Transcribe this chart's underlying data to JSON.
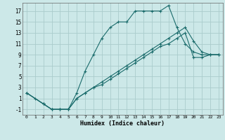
{
  "xlabel": "Humidex (Indice chaleur)",
  "background_color": "#cce8e8",
  "grid_color": "#aacccc",
  "line_color": "#1a6b6b",
  "xlim": [
    -0.5,
    23.5
  ],
  "ylim": [
    -2,
    18.5
  ],
  "xtick_labels": [
    "0",
    "1",
    "2",
    "3",
    "4",
    "5",
    "6",
    "7",
    "8",
    "9",
    "10",
    "11",
    "12",
    "13",
    "14",
    "15",
    "16",
    "17",
    "18",
    "19",
    "20",
    "21",
    "22",
    "23"
  ],
  "ytick_values": [
    -1,
    1,
    3,
    5,
    7,
    9,
    11,
    13,
    15,
    17
  ],
  "line1_x": [
    0,
    1,
    2,
    3,
    4,
    5,
    6,
    7,
    8,
    9,
    10,
    11,
    12,
    13,
    14,
    15,
    16,
    17,
    18,
    19,
    20,
    21,
    22,
    23
  ],
  "line1_y": [
    2,
    1,
    0,
    -1,
    -1,
    -1,
    2,
    6,
    9,
    12,
    14,
    15,
    15,
    17,
    17,
    17,
    17,
    18,
    14,
    11,
    9.5,
    9,
    9,
    9
  ],
  "line2_x": [
    0,
    2,
    3,
    4,
    5,
    6,
    7,
    8,
    9,
    10,
    11,
    12,
    13,
    14,
    15,
    16,
    17,
    18,
    19,
    20,
    21,
    22,
    23
  ],
  "line2_y": [
    2,
    0,
    -1,
    -1,
    -1,
    1,
    2,
    3,
    4,
    5,
    6,
    7,
    8,
    9,
    10,
    11,
    12,
    13,
    14,
    11.5,
    9.5,
    9,
    9
  ],
  "line3_x": [
    0,
    2,
    3,
    4,
    5,
    6,
    7,
    8,
    9,
    10,
    11,
    12,
    13,
    14,
    15,
    16,
    17,
    18,
    19,
    20,
    21,
    22,
    23
  ],
  "line3_y": [
    2,
    0,
    -1,
    -1,
    -1,
    1,
    2,
    3,
    3.5,
    4.5,
    5.5,
    6.5,
    7.5,
    8.5,
    9.5,
    10.5,
    11,
    12,
    13,
    8.5,
    8.5,
    9,
    9
  ]
}
